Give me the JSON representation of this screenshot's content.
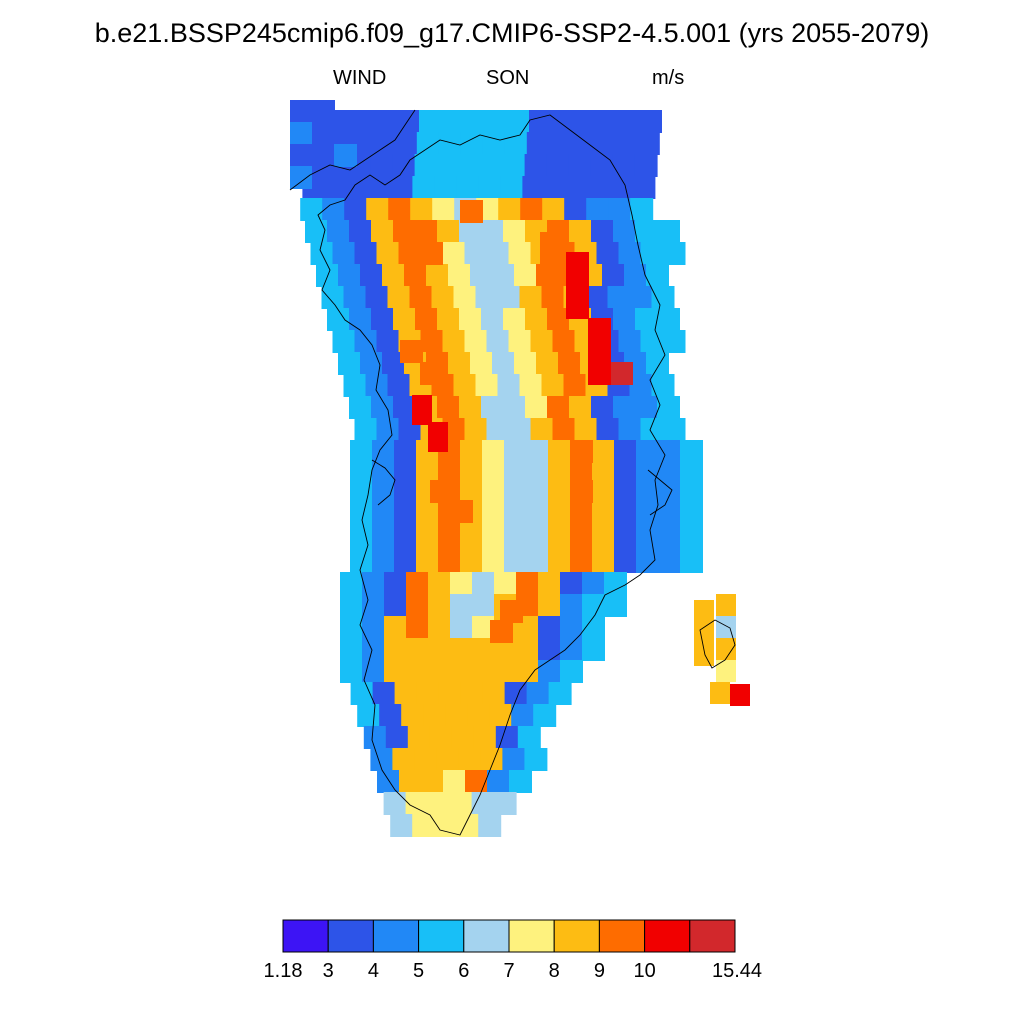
{
  "title": "b.e21.BSSP245cmip6.f09_g17.CMIP6-SSP2-4.5.001 (yrs 2055-2079)",
  "subtitle": {
    "left": "WIND",
    "center": "SON",
    "right": "m/s"
  },
  "colorbar": {
    "colors": [
      "#3d14f5",
      "#2d54e8",
      "#2188f6",
      "#18bff7",
      "#a4d3ef",
      "#fef27e",
      "#fdbc13",
      "#fe6c00",
      "#f10000",
      "#d2282c"
    ],
    "ticks": [
      "1.18",
      "3",
      "4",
      "5",
      "6",
      "7",
      "8",
      "9",
      "10",
      "15.44"
    ]
  },
  "map": {
    "region": "Greenland",
    "field": "wind speed",
    "units": "m/s"
  }
}
